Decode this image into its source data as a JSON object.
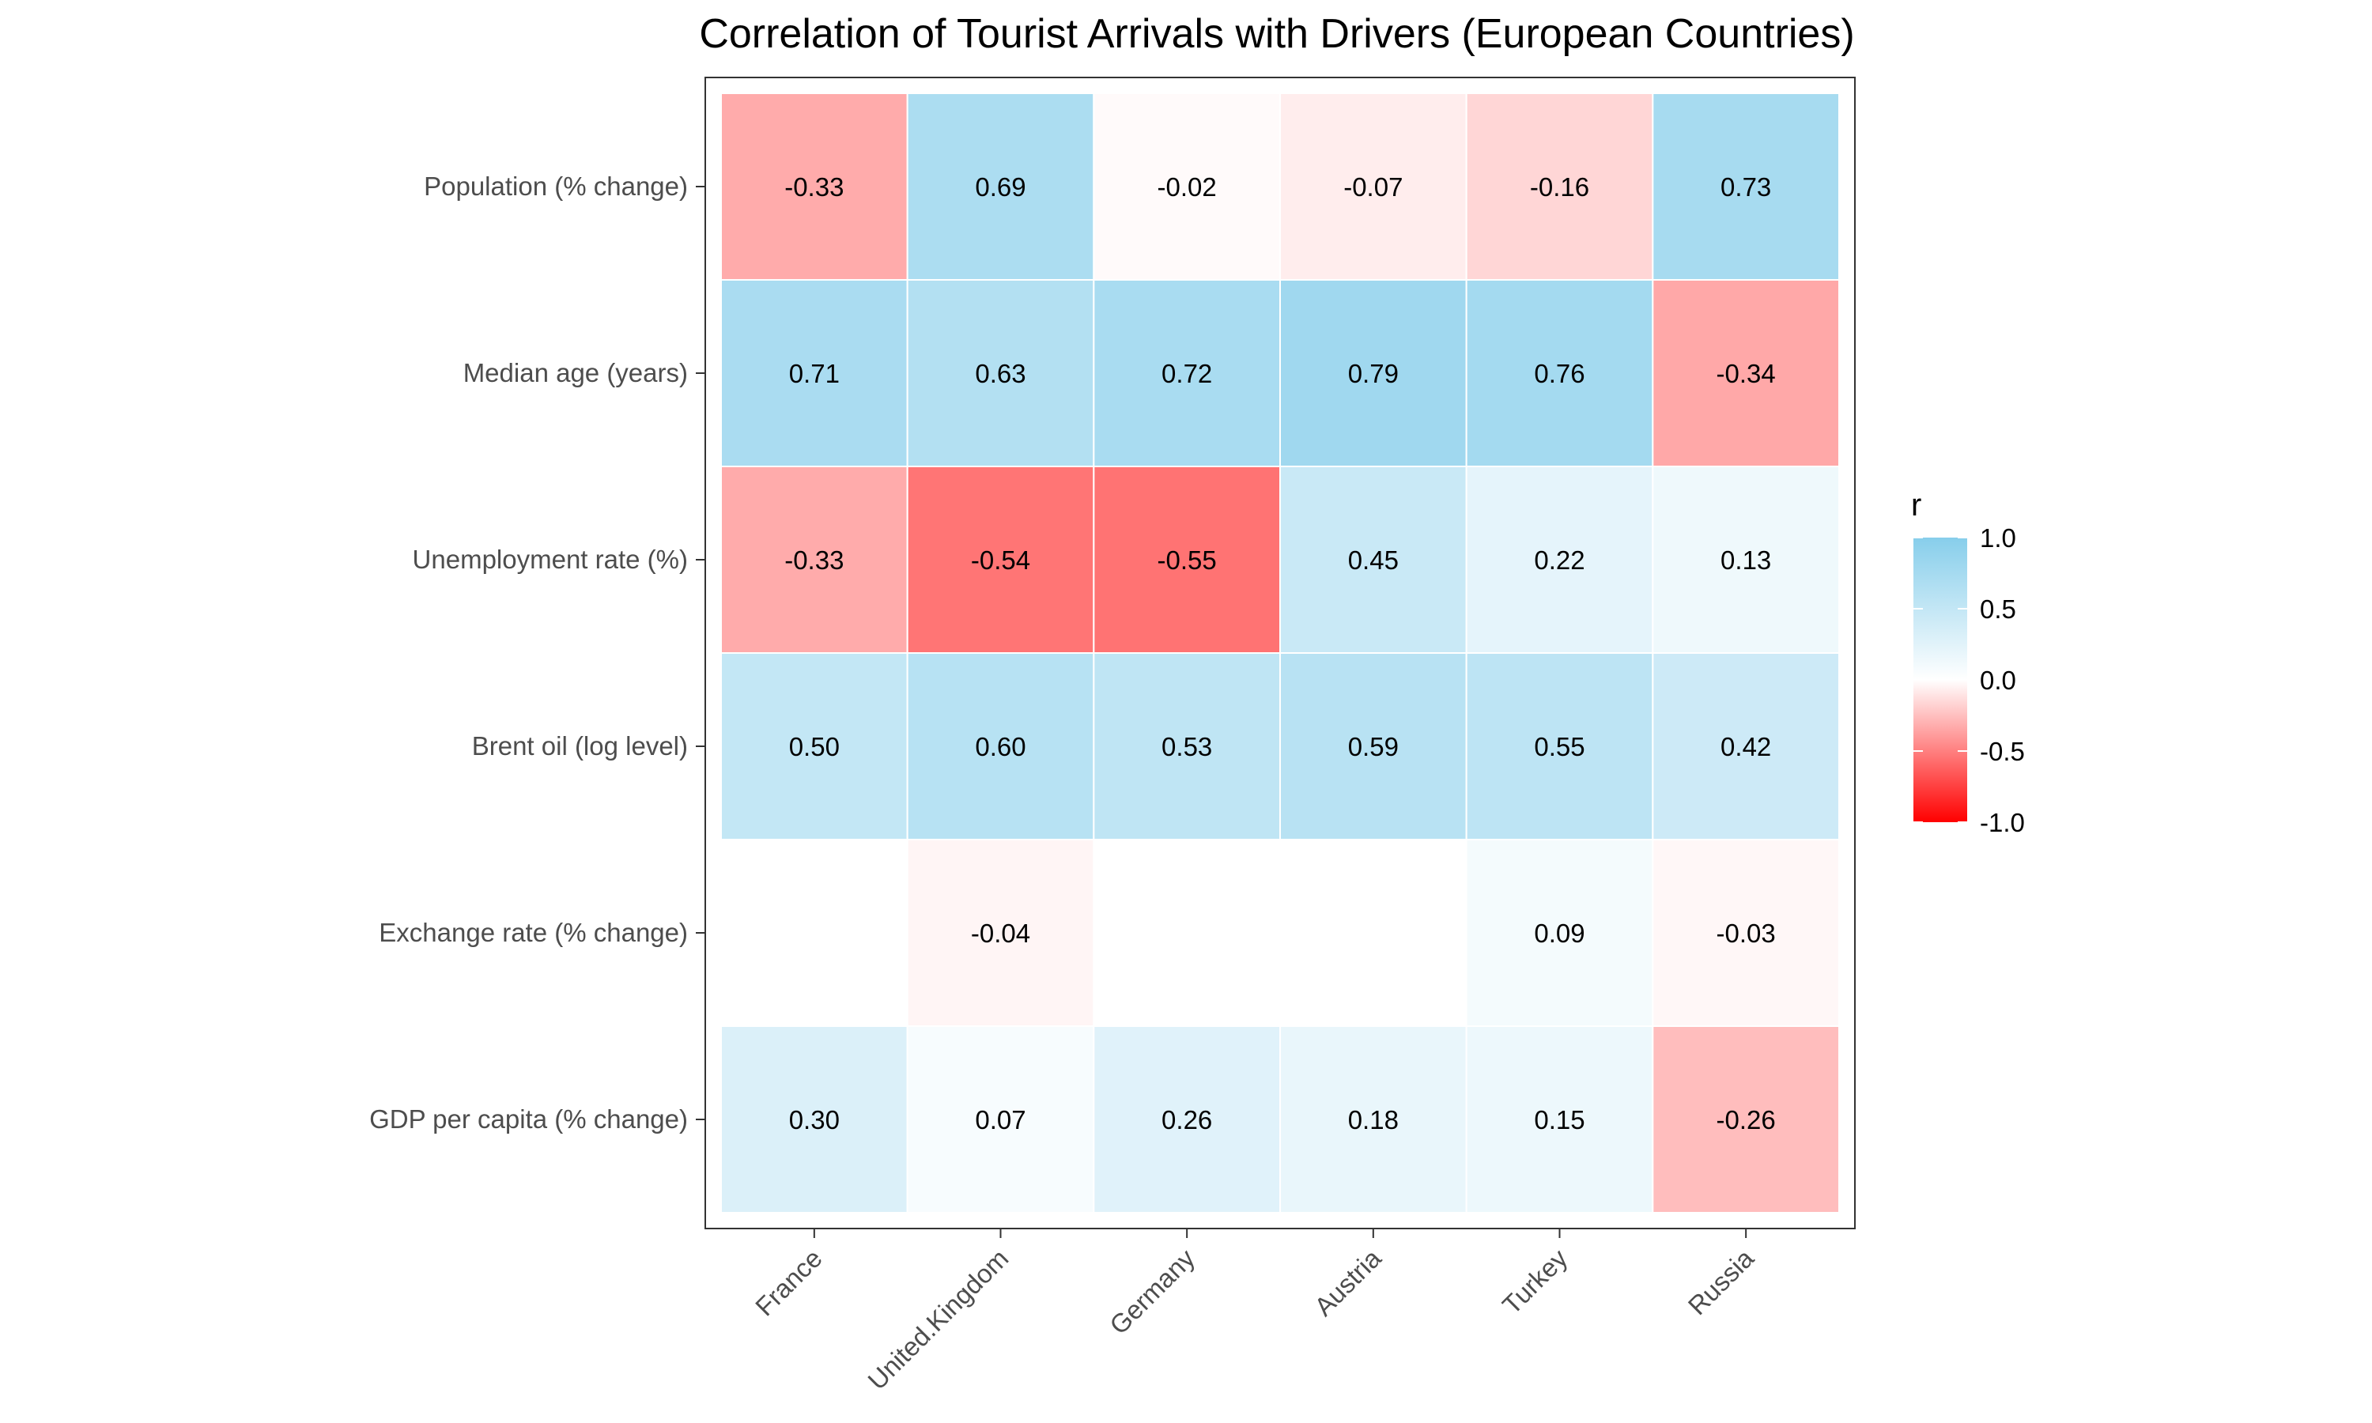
{
  "chart_data": {
    "type": "heatmap",
    "title": "Correlation of Tourist Arrivals with Drivers (European Countries)",
    "xlabel": "",
    "ylabel": "",
    "x_categories": [
      "France",
      "United.Kingdom",
      "Germany",
      "Austria",
      "Turkey",
      "Russia"
    ],
    "y_categories": [
      "Population (% change)",
      "Median age (years)",
      "Unemployment rate (%)",
      "Brent oil (log level)",
      "Exchange rate (% change)",
      "GDP per capita (% change)"
    ],
    "values": [
      [
        -0.33,
        0.69,
        -0.02,
        -0.07,
        -0.16,
        0.73
      ],
      [
        0.71,
        0.63,
        0.72,
        0.79,
        0.76,
        -0.34
      ],
      [
        -0.33,
        -0.54,
        -0.55,
        0.45,
        0.22,
        0.13
      ],
      [
        0.5,
        0.6,
        0.53,
        0.59,
        0.55,
        0.42
      ],
      [
        null,
        -0.04,
        null,
        null,
        0.09,
        -0.03
      ],
      [
        0.3,
        0.07,
        0.26,
        0.18,
        0.15,
        -0.26
      ]
    ],
    "value_labels": [
      [
        "-0.33",
        "0.69",
        "-0.02",
        "-0.07",
        "-0.16",
        "0.73"
      ],
      [
        "0.71",
        "0.63",
        "0.72",
        "0.79",
        "0.76",
        "-0.34"
      ],
      [
        "-0.33",
        "-0.54",
        "-0.55",
        "0.45",
        "0.22",
        "0.13"
      ],
      [
        "0.50",
        "0.60",
        "0.53",
        "0.59",
        "0.55",
        "0.42"
      ],
      [
        "",
        "-0.04",
        "",
        "",
        "0.09",
        "-0.03"
      ],
      [
        "0.30",
        "0.07",
        "0.26",
        "0.18",
        "0.15",
        "-0.26"
      ]
    ],
    "legend": {
      "title": "r",
      "placement": "right",
      "limits": [
        -1.0,
        1.0
      ],
      "ticks": [
        1.0,
        0.5,
        0.0,
        -0.5,
        -1.0
      ],
      "tick_labels": [
        "1.0",
        "0.5",
        "0.0",
        "-0.5",
        "-1.0"
      ],
      "colors": {
        "low": "#ff0000",
        "mid": "#ffffff",
        "high": "#87ceeb"
      }
    },
    "grid": false,
    "panel_border": true
  }
}
